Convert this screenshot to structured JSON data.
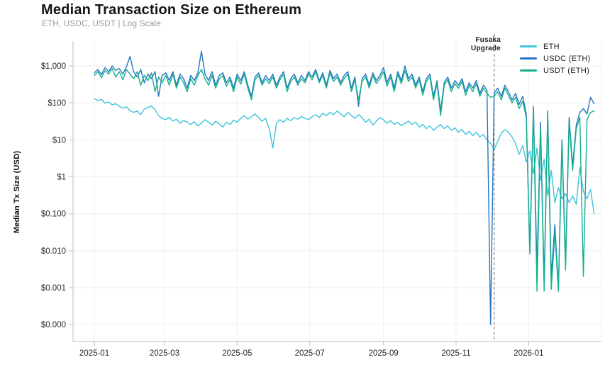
{
  "chart_data": {
    "type": "line",
    "title": "Median Transaction Size on Ethereum",
    "subtitle": "ETH, USDC, USDT | Log Scale",
    "ylabel": "Median Tx Size (USD)",
    "xlabel": "",
    "scale": "log",
    "grid": true,
    "legend_position": "top-right",
    "ylim": [
      0.0001,
      3000
    ],
    "x_unit": "days since 2025-01-01",
    "x_step_days": 3,
    "x_domain_days": [
      0,
      422
    ],
    "y_ticks": [
      {
        "label": "$1,000",
        "value": 1000
      },
      {
        "label": "$100",
        "value": 100
      },
      {
        "label": "$10",
        "value": 10
      },
      {
        "label": "$1",
        "value": 1
      },
      {
        "label": "$0.100",
        "value": 0.1
      },
      {
        "label": "$0.010",
        "value": 0.01
      },
      {
        "label": "$0.001",
        "value": 0.001
      },
      {
        "label": "$0.000",
        "value": 0.0001
      }
    ],
    "x_ticks": [
      {
        "label": "2025-01",
        "day": 0
      },
      {
        "label": "2025-03",
        "day": 59
      },
      {
        "label": "2025-05",
        "day": 120
      },
      {
        "label": "2025-07",
        "day": 181
      },
      {
        "label": "2025-09",
        "day": 243
      },
      {
        "label": "2025-11",
        "day": 304
      },
      {
        "label": "2026-01",
        "day": 365
      }
    ],
    "annotation": {
      "line1": "Fusaka",
      "line2": "Upgrade",
      "day": 336,
      "line_style": "dashed",
      "line_color": "#9a9a9a"
    },
    "series": [
      {
        "name": "ETH",
        "color": "#3cc4da",
        "values": [
          130,
          115,
          125,
          98,
          105,
          88,
          95,
          80,
          72,
          78,
          62,
          55,
          60,
          48,
          68,
          75,
          82,
          65,
          45,
          38,
          35,
          40,
          32,
          36,
          28,
          33,
          30,
          26,
          31,
          24,
          28,
          35,
          30,
          25,
          32,
          27,
          22,
          30,
          26,
          34,
          30,
          38,
          45,
          36,
          42,
          50,
          40,
          32,
          38,
          20,
          6,
          28,
          35,
          30,
          38,
          33,
          40,
          36,
          43,
          38,
          35,
          42,
          48,
          40,
          52,
          45,
          55,
          48,
          60,
          50,
          42,
          55,
          45,
          38,
          48,
          40,
          30,
          36,
          25,
          32,
          40,
          35,
          28,
          33,
          26,
          30,
          24,
          28,
          32,
          26,
          30,
          22,
          26,
          20,
          24,
          18,
          22,
          26,
          20,
          24,
          18,
          21,
          16,
          19,
          14,
          17,
          13,
          16,
          12,
          14,
          10,
          8,
          5.5,
          9,
          15,
          19,
          16,
          12,
          8,
          4,
          7,
          2.5,
          5,
          1.2,
          6,
          0.8,
          3,
          0.3,
          1.5,
          0.2,
          0.5,
          0.25,
          0.35,
          0.2,
          0.3,
          0.18,
          1.8,
          0.4,
          0.25,
          0.45,
          0.1
        ]
      },
      {
        "name": "USDC (ETH)",
        "color": "#2375c4",
        "values": [
          650,
          800,
          580,
          900,
          700,
          1000,
          750,
          850,
          600,
          950,
          1800,
          700,
          500,
          800,
          350,
          600,
          450,
          700,
          150,
          550,
          650,
          400,
          700,
          300,
          600,
          450,
          250,
          550,
          400,
          650,
          2500,
          600,
          400,
          700,
          300,
          550,
          650,
          350,
          500,
          250,
          600,
          400,
          700,
          300,
          150,
          500,
          650,
          350,
          550,
          400,
          600,
          300,
          500,
          700,
          250,
          450,
          600,
          350,
          550,
          400,
          700,
          500,
          800,
          400,
          650,
          300,
          750,
          450,
          600,
          350,
          550,
          700,
          250,
          500,
          80,
          450,
          600,
          300,
          650,
          400,
          550,
          900,
          350,
          600,
          250,
          700,
          400,
          1000,
          450,
          600,
          300,
          500,
          200,
          450,
          600,
          150,
          400,
          60,
          350,
          500,
          250,
          400,
          300,
          450,
          200,
          350,
          250,
          400,
          180,
          300,
          220,
          0.0001,
          180,
          250,
          150,
          300,
          200,
          120,
          180,
          90,
          150,
          50,
          0.01,
          80,
          0.003,
          30,
          0.0015,
          60,
          0.002,
          0.05,
          0.001,
          10,
          0.005,
          40,
          2,
          25,
          55,
          70,
          50,
          140,
          95
        ]
      },
      {
        "name": "USDT (ETH)",
        "color": "#14b08d",
        "values": [
          550,
          700,
          480,
          750,
          600,
          850,
          500,
          700,
          420,
          800,
          600,
          450,
          700,
          300,
          550,
          400,
          650,
          200,
          500,
          350,
          550,
          300,
          600,
          250,
          500,
          350,
          200,
          450,
          300,
          550,
          800,
          450,
          300,
          550,
          250,
          450,
          550,
          280,
          420,
          200,
          500,
          320,
          600,
          250,
          120,
          420,
          550,
          300,
          450,
          330,
          500,
          250,
          420,
          600,
          200,
          380,
          500,
          300,
          450,
          350,
          600,
          420,
          700,
          350,
          550,
          250,
          650,
          380,
          500,
          300,
          450,
          600,
          200,
          420,
          120,
          380,
          500,
          250,
          550,
          330,
          450,
          700,
          280,
          500,
          200,
          600,
          330,
          750,
          380,
          500,
          250,
          420,
          160,
          380,
          500,
          120,
          330,
          45,
          300,
          420,
          200,
          330,
          250,
          380,
          160,
          300,
          200,
          330,
          150,
          250,
          180,
          140,
          150,
          200,
          120,
          250,
          160,
          100,
          140,
          70,
          110,
          40,
          0.008,
          60,
          0.0008,
          20,
          0.0008,
          45,
          0.0009,
          0.03,
          0.0008,
          8,
          0.003,
          30,
          1.5,
          20,
          40,
          0.002,
          35,
          55,
          60
        ]
      }
    ]
  }
}
